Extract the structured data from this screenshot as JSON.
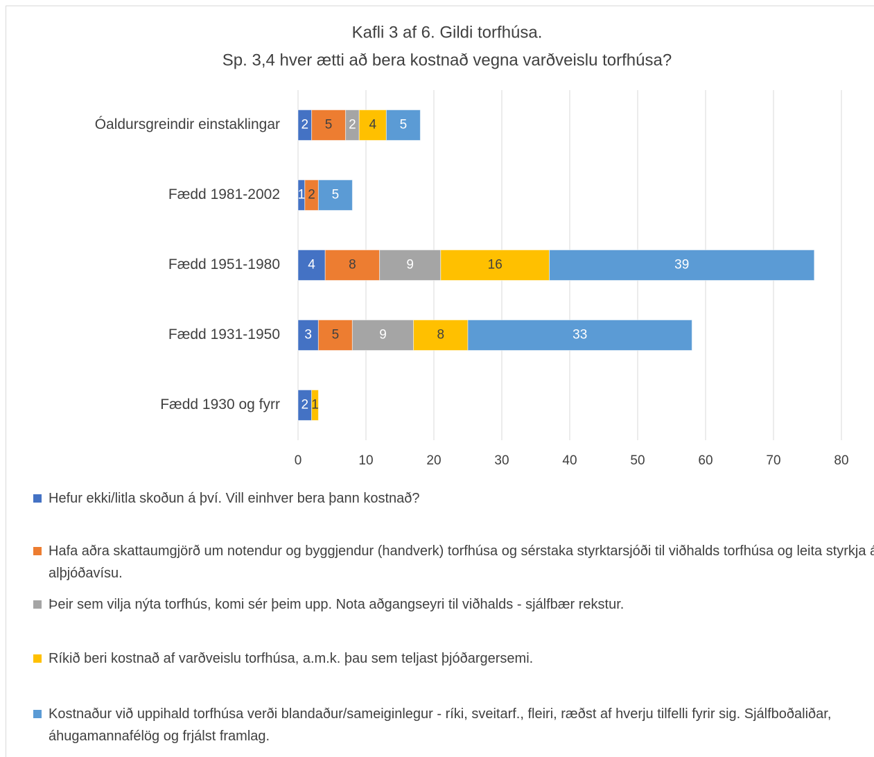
{
  "chart_data": {
    "type": "stacked-bar-horizontal",
    "title": "Kafli 3 af 6. Gildi torfhúsa.",
    "subtitle": "Sp. 3,4 hver ætti að bera kostnað vegna varðveislu torfhúsa?",
    "categories": [
      "Óaldursgreindir einstaklingar",
      "Fædd 1981-2002",
      "Fædd 1951-1980",
      "Fædd 1931-1950",
      "Fædd 1930 og fyrr"
    ],
    "series": [
      {
        "name": "Hefur ekki/litla skoðun á því. Vill einhver bera þann kostnað?",
        "color": "#4472c4",
        "values": [
          2,
          1,
          4,
          3,
          2
        ]
      },
      {
        "name": "Hafa aðra skattaumgjörð um notendur og byggjendur (handverk) torfhúsa og sérstaka styrktarsjóði til viðhalds torfhúsa og leita styrkja á alþjóðavísu.",
        "color": "#ed7d31",
        "values": [
          5,
          2,
          8,
          5,
          null
        ]
      },
      {
        "name": "Þeir sem vilja nýta torfhús, komi sér þeim upp. Nota aðgangseyri til viðhalds - sjálfbær rekstur.",
        "color": "#a5a5a5",
        "values": [
          2,
          null,
          9,
          9,
          null
        ]
      },
      {
        "name": "Ríkið beri kostnað af varðveislu torfhúsa, a.m.k. þau sem teljast þjóðargersemi.",
        "color": "#ffc000",
        "values": [
          4,
          null,
          16,
          8,
          1
        ]
      },
      {
        "name": "Kostnaður við uppihald torfhúsa verði blandaður/sameiginlegur - ríki, sveitarf., fleiri, ræðst af hverju tilfelli fyrir sig. Sjálfboðaliðar, áhugamannafélög og frjálst framlag.",
        "color": "#5b9bd5",
        "values": [
          5,
          5,
          39,
          33,
          null
        ]
      }
    ],
    "xlim": [
      0,
      80
    ],
    "xticks": [
      0,
      10,
      20,
      30,
      40,
      50,
      60,
      70,
      80
    ],
    "grid": true,
    "legend": "bottom"
  }
}
